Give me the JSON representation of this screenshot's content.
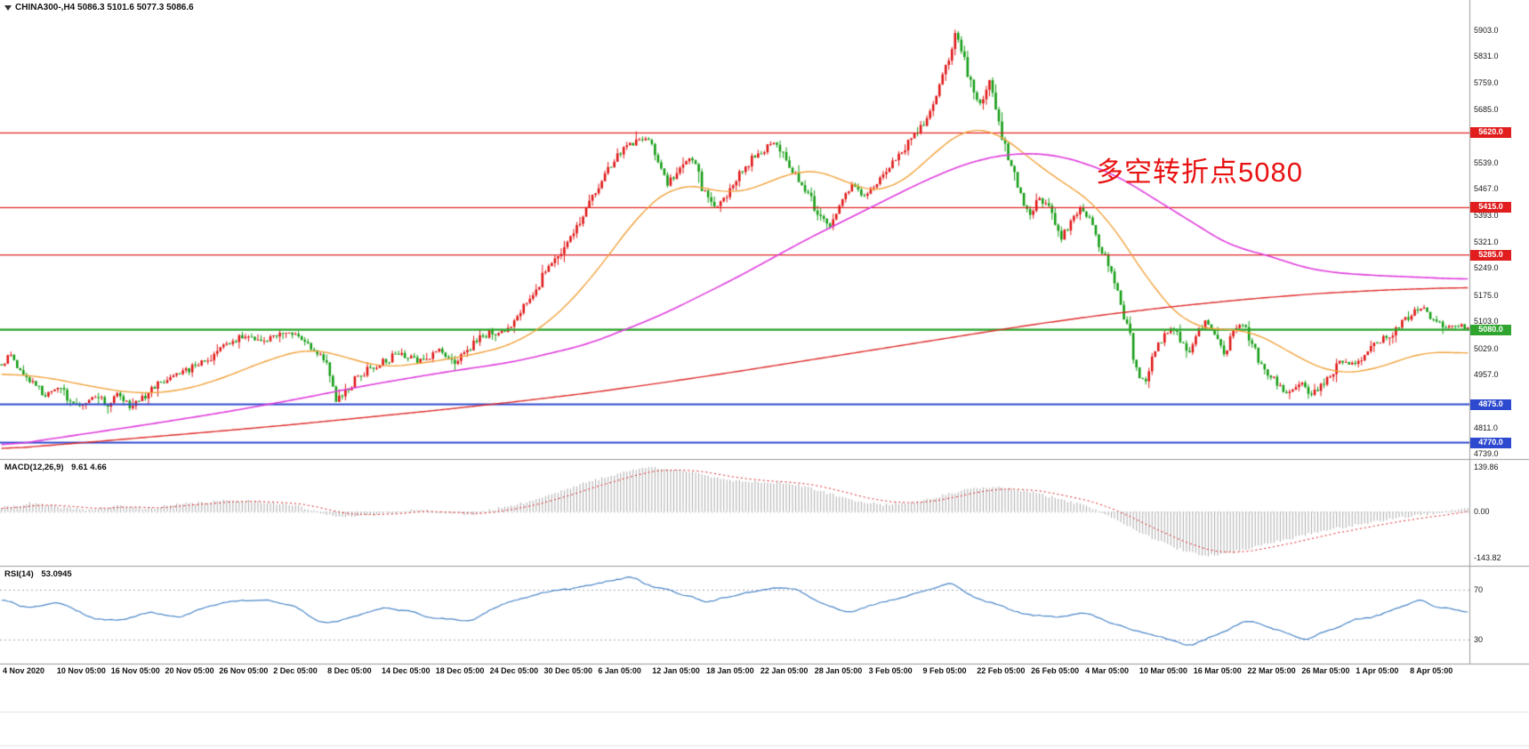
{
  "header": {
    "symbol_line": "CHINA300-,H4 5086.3 5101.6 5077.3 5086.6"
  },
  "annotation": {
    "text": "多空转折点5080",
    "color": "#e81212"
  },
  "colors": {
    "candle_up": "#e01818",
    "candle_down": "#169e16",
    "ma_fast": "#f2a33c",
    "ma_mid": "#e03ddd",
    "ma_slow": "#df2b2b",
    "macd_hist": "#ababab",
    "macd_signal": "#e02020",
    "rsi_line": "#4a86c8",
    "separator": "#9a9a9a",
    "level_dotted": "#a8a8bf",
    "axis_text": "#1a1a1a"
  },
  "chart_data": {
    "type": "candlestick",
    "symbol": "CHINA300-",
    "timeframe": "H4",
    "title": "CHINA300-,H4",
    "ohlc_current": {
      "open": 5086.3,
      "high": 5101.6,
      "low": 5077.3,
      "close": 5086.6
    },
    "ylim": [
      4725,
      5985
    ],
    "visible_bars": 470,
    "grid": false,
    "y_ticks": [
      {
        "label": "5903.0",
        "value": 5903
      },
      {
        "label": "5831.0",
        "value": 5831
      },
      {
        "label": "5759.0",
        "value": 5759
      },
      {
        "label": "5685.0",
        "value": 5685
      },
      {
        "label": "5539.0",
        "value": 5539
      },
      {
        "label": "5467.0",
        "value": 5467
      },
      {
        "label": "5393.0",
        "value": 5393
      },
      {
        "label": "5321.0",
        "value": 5321
      },
      {
        "label": "5249.0",
        "value": 5249
      },
      {
        "label": "5175.0",
        "value": 5175
      },
      {
        "label": "5103.0",
        "value": 5103
      },
      {
        "label": "5029.0",
        "value": 5029
      },
      {
        "label": "4957.0",
        "value": 4957
      },
      {
        "label": "4811.0",
        "value": 4811
      },
      {
        "label": "4739.0",
        "value": 4739
      }
    ],
    "hlines": [
      {
        "label": "5620.0",
        "value": 5620,
        "color": "#e11d1d",
        "width": 1.2
      },
      {
        "label": "5415.0",
        "value": 5415,
        "color": "#e11d1d",
        "width": 1.2
      },
      {
        "label": "5285.0",
        "value": 5285,
        "color": "#e11d1d",
        "width": 1.2
      },
      {
        "label": "5080.0",
        "value": 5080,
        "color": "#2fa52f",
        "width": 2.4
      },
      {
        "label": "4875.0",
        "value": 4875,
        "color": "#2c49cf",
        "width": 2
      },
      {
        "label": "4770.0",
        "value": 4770,
        "color": "#2c49cf",
        "width": 2
      }
    ],
    "x_labels": [
      "4 Nov 2020",
      "10 Nov 05:00",
      "16 Nov 05:00",
      "20 Nov 05:00",
      "26 Nov 05:00",
      "2 Dec 05:00",
      "8 Dec 05:00",
      "14 Dec 05:00",
      "18 Dec 05:00",
      "24 Dec 05:00",
      "30 Dec 05:00",
      "6 Jan 05:00",
      "12 Jan 05:00",
      "18 Jan 05:00",
      "22 Jan 05:00",
      "28 Jan 05:00",
      "3 Feb 05:00",
      "9 Feb 05:00",
      "22 Feb 05:00",
      "26 Feb 05:00",
      "4 Mar 05:00",
      "10 Mar 05:00",
      "16 Mar 05:00",
      "22 Mar 05:00",
      "26 Mar 05:00",
      "1 Apr 05:00",
      "8 Apr 05:00"
    ],
    "price_path": [
      [
        0.0,
        4985
      ],
      [
        0.006,
        5010
      ],
      [
        0.012,
        4975
      ],
      [
        0.02,
        4940
      ],
      [
        0.03,
        4900
      ],
      [
        0.04,
        4915
      ],
      [
        0.048,
        4880
      ],
      [
        0.056,
        4865
      ],
      [
        0.064,
        4900
      ],
      [
        0.072,
        4875
      ],
      [
        0.08,
        4905
      ],
      [
        0.088,
        4870
      ],
      [
        0.096,
        4890
      ],
      [
        0.105,
        4925
      ],
      [
        0.115,
        4945
      ],
      [
        0.125,
        4965
      ],
      [
        0.135,
        4985
      ],
      [
        0.145,
        5010
      ],
      [
        0.155,
        5045
      ],
      [
        0.165,
        5060
      ],
      [
        0.175,
        5045
      ],
      [
        0.185,
        5060
      ],
      [
        0.195,
        5080
      ],
      [
        0.205,
        5055
      ],
      [
        0.215,
        5020
      ],
      [
        0.222,
        4985
      ],
      [
        0.228,
        4885
      ],
      [
        0.235,
        4915
      ],
      [
        0.243,
        4950
      ],
      [
        0.252,
        4975
      ],
      [
        0.262,
        4995
      ],
      [
        0.272,
        5015
      ],
      [
        0.282,
        4995
      ],
      [
        0.292,
        5005
      ],
      [
        0.3,
        5025
      ],
      [
        0.308,
        4990
      ],
      [
        0.316,
        5015
      ],
      [
        0.324,
        5050
      ],
      [
        0.332,
        5070
      ],
      [
        0.34,
        5065
      ],
      [
        0.35,
        5110
      ],
      [
        0.36,
        5160
      ],
      [
        0.37,
        5230
      ],
      [
        0.38,
        5290
      ],
      [
        0.39,
        5340
      ],
      [
        0.4,
        5420
      ],
      [
        0.41,
        5500
      ],
      [
        0.42,
        5560
      ],
      [
        0.43,
        5590
      ],
      [
        0.44,
        5615
      ],
      [
        0.447,
        5545
      ],
      [
        0.455,
        5480
      ],
      [
        0.463,
        5525
      ],
      [
        0.47,
        5560
      ],
      [
        0.478,
        5470
      ],
      [
        0.486,
        5415
      ],
      [
        0.494,
        5450
      ],
      [
        0.502,
        5500
      ],
      [
        0.51,
        5540
      ],
      [
        0.518,
        5565
      ],
      [
        0.526,
        5590
      ],
      [
        0.534,
        5555
      ],
      [
        0.542,
        5500
      ],
      [
        0.55,
        5455
      ],
      [
        0.558,
        5390
      ],
      [
        0.565,
        5360
      ],
      [
        0.573,
        5430
      ],
      [
        0.58,
        5475
      ],
      [
        0.588,
        5450
      ],
      [
        0.596,
        5480
      ],
      [
        0.604,
        5520
      ],
      [
        0.612,
        5560
      ],
      [
        0.62,
        5600
      ],
      [
        0.628,
        5640
      ],
      [
        0.636,
        5705
      ],
      [
        0.644,
        5800
      ],
      [
        0.65,
        5895
      ],
      [
        0.656,
        5830
      ],
      [
        0.662,
        5740
      ],
      [
        0.668,
        5700
      ],
      [
        0.674,
        5760
      ],
      [
        0.68,
        5640
      ],
      [
        0.687,
        5550
      ],
      [
        0.694,
        5460
      ],
      [
        0.701,
        5395
      ],
      [
        0.708,
        5440
      ],
      [
        0.715,
        5415
      ],
      [
        0.722,
        5330
      ],
      [
        0.729,
        5370
      ],
      [
        0.736,
        5420
      ],
      [
        0.743,
        5380
      ],
      [
        0.75,
        5300
      ],
      [
        0.757,
        5240
      ],
      [
        0.763,
        5150
      ],
      [
        0.769,
        5080
      ],
      [
        0.774,
        4960
      ],
      [
        0.78,
        4935
      ],
      [
        0.786,
        5010
      ],
      [
        0.792,
        5060
      ],
      [
        0.798,
        5095
      ],
      [
        0.804,
        5050
      ],
      [
        0.81,
        5005
      ],
      [
        0.816,
        5070
      ],
      [
        0.822,
        5110
      ],
      [
        0.828,
        5060
      ],
      [
        0.834,
        5010
      ],
      [
        0.84,
        5070
      ],
      [
        0.846,
        5095
      ],
      [
        0.852,
        5055
      ],
      [
        0.858,
        4995
      ],
      [
        0.865,
        4955
      ],
      [
        0.872,
        4925
      ],
      [
        0.879,
        4900
      ],
      [
        0.886,
        4935
      ],
      [
        0.893,
        4905
      ],
      [
        0.9,
        4925
      ],
      [
        0.907,
        4960
      ],
      [
        0.914,
        4995
      ],
      [
        0.921,
        4985
      ],
      [
        0.928,
        5005
      ],
      [
        0.935,
        5040
      ],
      [
        0.942,
        5055
      ],
      [
        0.949,
        5075
      ],
      [
        0.956,
        5105
      ],
      [
        0.963,
        5125
      ],
      [
        0.97,
        5140
      ],
      [
        0.977,
        5105
      ],
      [
        0.984,
        5085
      ],
      [
        0.991,
        5095
      ],
      [
        1.0,
        5087
      ]
    ],
    "ma_fast_path": [
      [
        0.0,
        4960
      ],
      [
        0.03,
        4950
      ],
      [
        0.06,
        4925
      ],
      [
        0.09,
        4905
      ],
      [
        0.12,
        4910
      ],
      [
        0.15,
        4945
      ],
      [
        0.18,
        4995
      ],
      [
        0.21,
        5030
      ],
      [
        0.23,
        5010
      ],
      [
        0.26,
        4975
      ],
      [
        0.29,
        4990
      ],
      [
        0.32,
        5010
      ],
      [
        0.35,
        5040
      ],
      [
        0.38,
        5120
      ],
      [
        0.41,
        5260
      ],
      [
        0.435,
        5400
      ],
      [
        0.46,
        5480
      ],
      [
        0.48,
        5470
      ],
      [
        0.5,
        5450
      ],
      [
        0.52,
        5480
      ],
      [
        0.545,
        5520
      ],
      [
        0.565,
        5510
      ],
      [
        0.585,
        5465
      ],
      [
        0.605,
        5460
      ],
      [
        0.625,
        5520
      ],
      [
        0.645,
        5600
      ],
      [
        0.66,
        5635
      ],
      [
        0.675,
        5630
      ],
      [
        0.69,
        5590
      ],
      [
        0.71,
        5520
      ],
      [
        0.73,
        5470
      ],
      [
        0.75,
        5410
      ],
      [
        0.77,
        5290
      ],
      [
        0.79,
        5170
      ],
      [
        0.81,
        5090
      ],
      [
        0.83,
        5080
      ],
      [
        0.85,
        5080
      ],
      [
        0.87,
        5040
      ],
      [
        0.89,
        4990
      ],
      [
        0.91,
        4960
      ],
      [
        0.93,
        4965
      ],
      [
        0.95,
        4990
      ],
      [
        0.97,
        5020
      ],
      [
        1.0,
        5015
      ]
    ],
    "ma_mid_path": [
      [
        0.0,
        4760
      ],
      [
        0.05,
        4790
      ],
      [
        0.1,
        4820
      ],
      [
        0.15,
        4852
      ],
      [
        0.2,
        4888
      ],
      [
        0.25,
        4928
      ],
      [
        0.3,
        4962
      ],
      [
        0.35,
        4992
      ],
      [
        0.4,
        5040
      ],
      [
        0.45,
        5120
      ],
      [
        0.5,
        5220
      ],
      [
        0.55,
        5330
      ],
      [
        0.6,
        5430
      ],
      [
        0.63,
        5490
      ],
      [
        0.66,
        5540
      ],
      [
        0.69,
        5565
      ],
      [
        0.72,
        5560
      ],
      [
        0.74,
        5535
      ],
      [
        0.76,
        5505
      ],
      [
        0.78,
        5455
      ],
      [
        0.8,
        5405
      ],
      [
        0.82,
        5355
      ],
      [
        0.84,
        5305
      ],
      [
        0.86,
        5290
      ],
      [
        0.88,
        5260
      ],
      [
        0.9,
        5240
      ],
      [
        0.93,
        5230
      ],
      [
        0.96,
        5225
      ],
      [
        1.0,
        5218
      ]
    ],
    "ma_slow_path": [
      [
        0.0,
        4752
      ],
      [
        0.05,
        4768
      ],
      [
        0.1,
        4785
      ],
      [
        0.15,
        4802
      ],
      [
        0.2,
        4820
      ],
      [
        0.25,
        4840
      ],
      [
        0.3,
        4860
      ],
      [
        0.35,
        4882
      ],
      [
        0.4,
        4906
      ],
      [
        0.45,
        4934
      ],
      [
        0.5,
        4964
      ],
      [
        0.55,
        4996
      ],
      [
        0.6,
        5028
      ],
      [
        0.65,
        5060
      ],
      [
        0.7,
        5092
      ],
      [
        0.75,
        5120
      ],
      [
        0.8,
        5144
      ],
      [
        0.85,
        5164
      ],
      [
        0.9,
        5180
      ],
      [
        0.95,
        5190
      ],
      [
        1.0,
        5196
      ]
    ],
    "macd": {
      "label": "MACD(12,26,9)",
      "value_text": "9.61 4.66",
      "range": [
        -162,
        158
      ],
      "ticks": [
        {
          "label": "139.86",
          "value": 139.86
        },
        {
          "label": "0.00",
          "value": 0
        },
        {
          "label": "-143.82",
          "value": -143.82
        }
      ],
      "path": [
        [
          0.0,
          12
        ],
        [
          0.02,
          26
        ],
        [
          0.04,
          14
        ],
        [
          0.06,
          6
        ],
        [
          0.08,
          18
        ],
        [
          0.1,
          10
        ],
        [
          0.12,
          22
        ],
        [
          0.14,
          30
        ],
        [
          0.16,
          36
        ],
        [
          0.18,
          30
        ],
        [
          0.2,
          20
        ],
        [
          0.22,
          -8
        ],
        [
          0.24,
          -16
        ],
        [
          0.26,
          -6
        ],
        [
          0.28,
          6
        ],
        [
          0.3,
          -2
        ],
        [
          0.32,
          -10
        ],
        [
          0.34,
          12
        ],
        [
          0.36,
          32
        ],
        [
          0.38,
          62
        ],
        [
          0.4,
          92
        ],
        [
          0.42,
          118
        ],
        [
          0.44,
          138
        ],
        [
          0.46,
          132
        ],
        [
          0.48,
          112
        ],
        [
          0.5,
          96
        ],
        [
          0.52,
          92
        ],
        [
          0.54,
          86
        ],
        [
          0.56,
          62
        ],
        [
          0.58,
          36
        ],
        [
          0.6,
          22
        ],
        [
          0.62,
          28
        ],
        [
          0.64,
          48
        ],
        [
          0.66,
          70
        ],
        [
          0.68,
          76
        ],
        [
          0.7,
          62
        ],
        [
          0.72,
          42
        ],
        [
          0.74,
          18
        ],
        [
          0.76,
          -22
        ],
        [
          0.78,
          -72
        ],
        [
          0.8,
          -112
        ],
        [
          0.82,
          -138
        ],
        [
          0.84,
          -126
        ],
        [
          0.86,
          -102
        ],
        [
          0.88,
          -82
        ],
        [
          0.9,
          -60
        ],
        [
          0.92,
          -44
        ],
        [
          0.94,
          -28
        ],
        [
          0.96,
          -14
        ],
        [
          0.98,
          -4
        ],
        [
          1.0,
          9.61
        ]
      ]
    },
    "rsi": {
      "label": "RSI(14)",
      "value_text": "53.0945",
      "levels": [
        {
          "label": "70",
          "value": 70
        },
        {
          "label": "30",
          "value": 30
        }
      ],
      "path": [
        [
          0.0,
          62
        ],
        [
          0.02,
          55
        ],
        [
          0.04,
          60
        ],
        [
          0.06,
          48
        ],
        [
          0.08,
          45
        ],
        [
          0.1,
          52
        ],
        [
          0.12,
          48
        ],
        [
          0.14,
          56
        ],
        [
          0.16,
          61
        ],
        [
          0.18,
          62
        ],
        [
          0.2,
          57
        ],
        [
          0.22,
          42
        ],
        [
          0.24,
          48
        ],
        [
          0.26,
          55
        ],
        [
          0.28,
          52
        ],
        [
          0.3,
          47
        ],
        [
          0.32,
          45
        ],
        [
          0.34,
          58
        ],
        [
          0.36,
          65
        ],
        [
          0.38,
          70
        ],
        [
          0.4,
          73
        ],
        [
          0.42,
          79
        ],
        [
          0.43,
          81
        ],
        [
          0.44,
          74
        ],
        [
          0.46,
          68
        ],
        [
          0.48,
          60
        ],
        [
          0.5,
          65
        ],
        [
          0.52,
          70
        ],
        [
          0.54,
          72
        ],
        [
          0.56,
          58
        ],
        [
          0.58,
          52
        ],
        [
          0.6,
          60
        ],
        [
          0.62,
          66
        ],
        [
          0.64,
          73
        ],
        [
          0.65,
          76
        ],
        [
          0.66,
          64
        ],
        [
          0.68,
          58
        ],
        [
          0.7,
          50
        ],
        [
          0.72,
          48
        ],
        [
          0.74,
          52
        ],
        [
          0.76,
          42
        ],
        [
          0.78,
          35
        ],
        [
          0.8,
          29
        ],
        [
          0.81,
          24
        ],
        [
          0.82,
          30
        ],
        [
          0.84,
          40
        ],
        [
          0.85,
          46
        ],
        [
          0.86,
          42
        ],
        [
          0.88,
          34
        ],
        [
          0.89,
          29
        ],
        [
          0.9,
          36
        ],
        [
          0.92,
          45
        ],
        [
          0.94,
          50
        ],
        [
          0.96,
          58
        ],
        [
          0.97,
          62
        ],
        [
          0.98,
          55
        ],
        [
          1.0,
          53.1
        ]
      ]
    }
  }
}
